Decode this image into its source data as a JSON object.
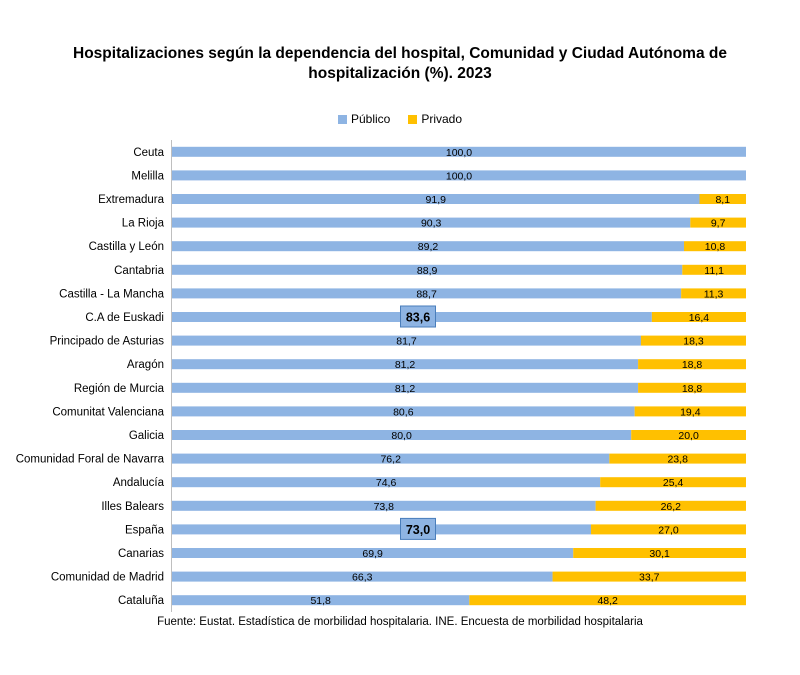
{
  "colors": {
    "publico": "#8EB4E3",
    "privado": "#FFC000",
    "highlight_border": "#4A7EBB"
  },
  "chart_data": {
    "type": "bar",
    "orientation": "horizontal",
    "stacked": true,
    "title_line1": "Hospitalizaciones según la dependencia del hospital, Comunidad y Ciudad Autónoma de",
    "title_line2": "hospitalización (%). 2023",
    "legend_position": "top-center",
    "xlim": [
      0,
      100
    ],
    "categories": [
      "Ceuta",
      "Melilla",
      "Extremadura",
      "La Rioja",
      "Castilla y León",
      "Cantabria",
      "Castilla - La Mancha",
      "C.A de Euskadi",
      "Principado de Asturias",
      "Aragón",
      "Región de Murcia",
      "Comunitat Valenciana",
      "Galicia",
      "Comunidad Foral de Navarra",
      "Andalucía",
      "Illes Balears",
      "España",
      "Canarias",
      "Comunidad de Madrid",
      "Cataluña"
    ],
    "series": [
      {
        "name": "Público",
        "values": [
          100.0,
          100.0,
          91.9,
          90.3,
          89.2,
          88.9,
          88.7,
          83.6,
          81.7,
          81.2,
          81.2,
          80.6,
          80.0,
          76.2,
          74.6,
          73.8,
          73.0,
          69.9,
          66.3,
          51.8
        ],
        "labels": [
          "100,0",
          "100,0",
          "91,9",
          "90,3",
          "89,2",
          "88,9",
          "88,7",
          "83,6",
          "81,7",
          "81,2",
          "81,2",
          "80,6",
          "80,0",
          "76,2",
          "74,6",
          "73,8",
          "73,0",
          "69,9",
          "66,3",
          "51,8"
        ]
      },
      {
        "name": "Privado",
        "values": [
          0,
          0,
          8.1,
          9.7,
          10.8,
          11.1,
          11.3,
          16.4,
          18.3,
          18.8,
          18.8,
          19.4,
          20.0,
          23.8,
          25.4,
          26.2,
          27.0,
          30.1,
          33.7,
          48.2
        ],
        "labels": [
          "",
          "",
          "8,1",
          "9,7",
          "10,8",
          "11,1",
          "11,3",
          "16,4",
          "18,3",
          "18,8",
          "18,8",
          "19,4",
          "20,0",
          "23,8",
          "25,4",
          "26,2",
          "27,0",
          "30,1",
          "33,7",
          "48,2"
        ]
      }
    ],
    "highlighted_categories": [
      "C.A de Euskadi",
      "España"
    ]
  },
  "source": "Fuente: Eustat. Estadística de morbilidad hospitalaria. INE.  Encuesta de morbilidad hospitalaria"
}
